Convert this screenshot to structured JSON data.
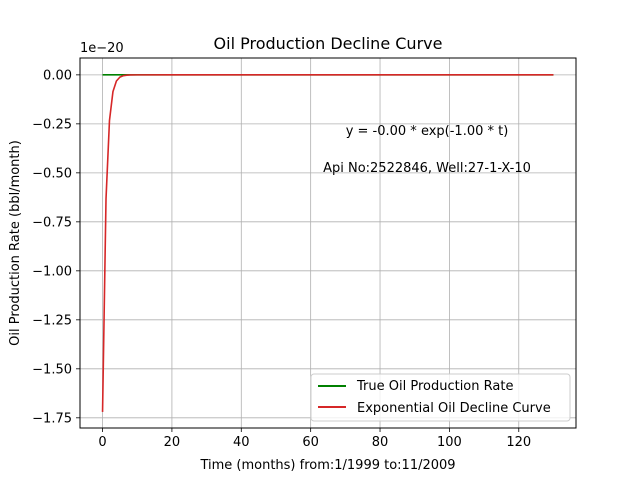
{
  "chart_data": {
    "type": "line",
    "title": "Oil Production Decline Curve",
    "xlabel": "Time (months) from:1/1999 to:11/2009",
    "ylabel": "Oil Production Rate (bbl/month)",
    "y_offset_label": "1e−20",
    "xlim": [
      -6.5,
      136.5
    ],
    "ylim": [
      -1.802e-20,
      8.6e-22
    ],
    "xticks": [
      0,
      20,
      40,
      60,
      80,
      100,
      120
    ],
    "xtick_labels": [
      "0",
      "20",
      "40",
      "60",
      "80",
      "100",
      "120"
    ],
    "yticks": [
      0.0,
      -2.5e-21,
      -5e-21,
      -7.5e-21,
      -1e-20,
      -1.25e-20,
      -1.5e-20,
      -1.75e-20
    ],
    "ytick_labels": [
      "0.00",
      "−0.25",
      "−0.50",
      "−0.75",
      "−1.00",
      "−1.25",
      "−1.50",
      "−1.75"
    ],
    "grid": true,
    "legend_position": "lower-right",
    "annotations": [
      "y = -0.00 * exp(-1.00 * t)",
      "Api No:2522846, Well:27-1-X-10"
    ],
    "series": [
      {
        "name": "True Oil Production Rate",
        "color": "#008000",
        "x": [
          0,
          1,
          2,
          3,
          4,
          5,
          6,
          7,
          8,
          10,
          20,
          40,
          60,
          80,
          100,
          120,
          130
        ],
        "y": [
          0,
          0,
          0,
          0,
          0,
          0,
          0,
          0,
          0,
          0,
          0,
          0,
          0,
          0,
          0,
          0,
          0
        ]
      },
      {
        "name": "Exponential Oil Decline Curve",
        "color": "#d62728",
        "x": [
          0,
          1,
          2,
          3,
          4,
          5,
          6,
          7,
          8,
          10,
          20,
          40,
          60,
          80,
          100,
          120,
          130
        ],
        "y": [
          -1.72e-20,
          -6.33e-21,
          -2.33e-21,
          -8.56e-22,
          -3.15e-22,
          -1.16e-22,
          -4.26e-23,
          -1.57e-23,
          -5.8e-24,
          -8e-25,
          0,
          0,
          0,
          0,
          0,
          0,
          0
        ]
      }
    ]
  }
}
